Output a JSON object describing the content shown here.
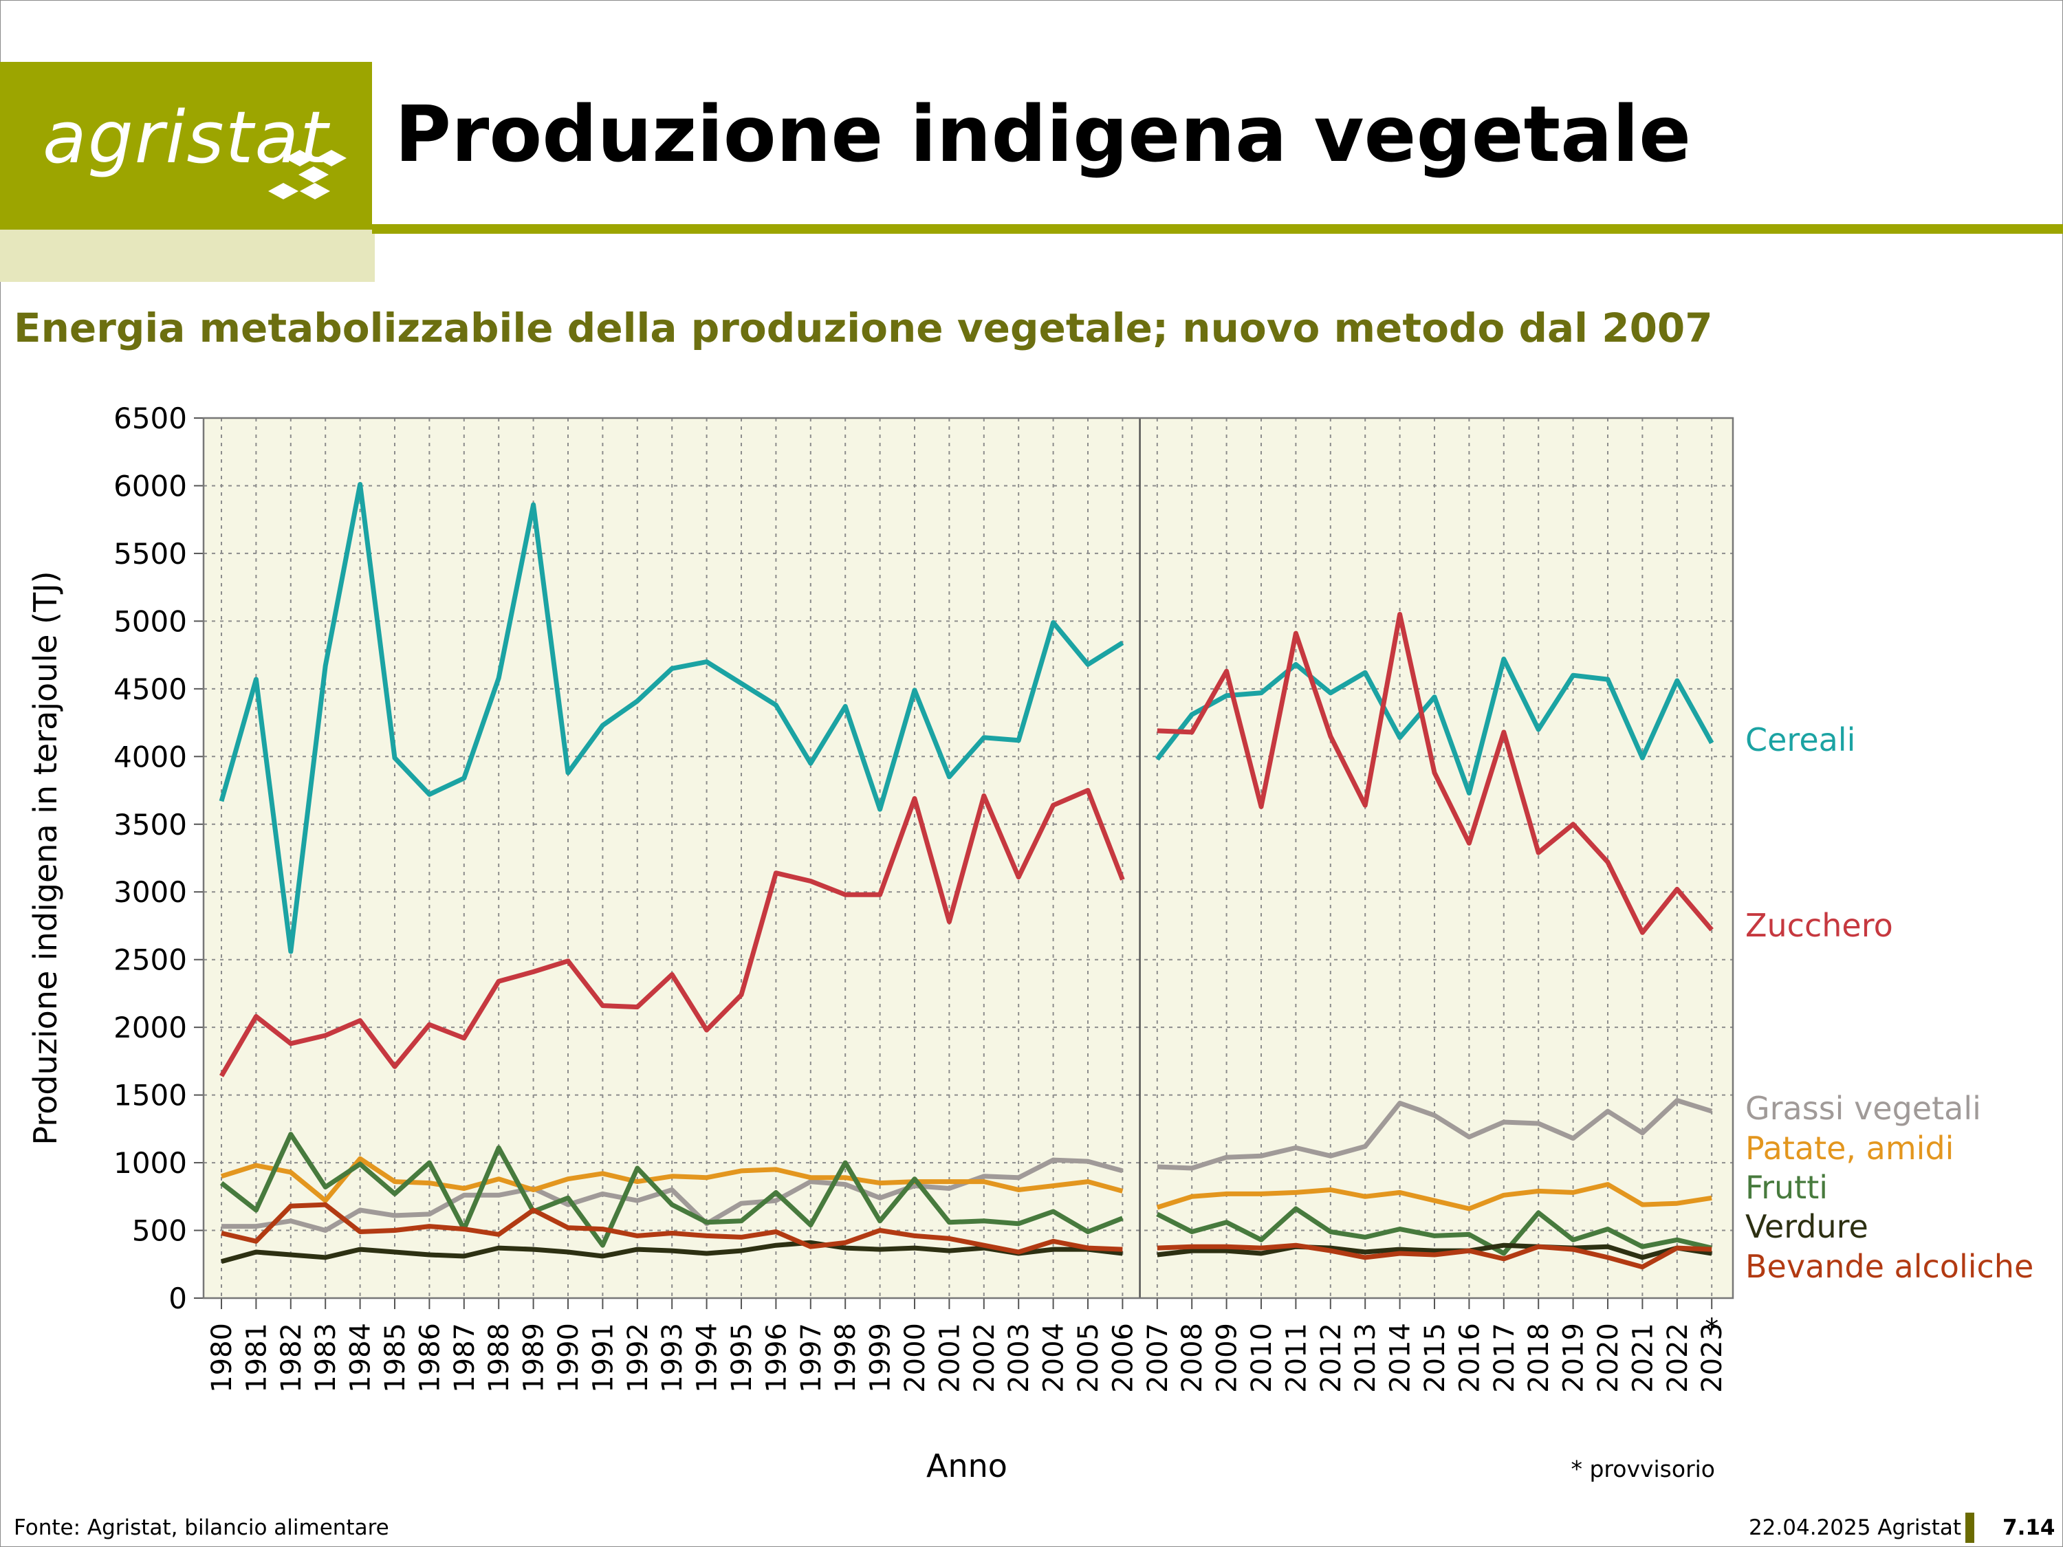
{
  "header": {
    "logo_text": "agristat",
    "title": "Produzione indigena vegetale"
  },
  "subtitle": "Energia metabolizzabile della produzione vegetale; nuovo metodo dal 2007",
  "colors": {
    "brand": "#9ca500",
    "brand_pale": "#e6e7bd",
    "subtitle": "#6c6f10",
    "plot_background": "#f6f6e4"
  },
  "chart_data": {
    "type": "line",
    "title": "",
    "xlabel": "Anno",
    "ylabel": "Produzione indigena in terajoule (TJ)",
    "ylim": [
      0,
      6500
    ],
    "yticks": [
      0,
      500,
      1000,
      1500,
      2000,
      2500,
      3000,
      3500,
      4000,
      4500,
      5000,
      5500,
      6000,
      6500
    ],
    "grid": true,
    "legend": "right",
    "method_break": "2006/2007",
    "footnote_marker": "*",
    "footnote": "* provvisorio",
    "categories": [
      "1980",
      "1981",
      "1982",
      "1983",
      "1984",
      "1985",
      "1986",
      "1987",
      "1988",
      "1989",
      "1990",
      "1991",
      "1992",
      "1993",
      "1994",
      "1995",
      "1996",
      "1997",
      "1998",
      "1999",
      "2000",
      "2001",
      "2002",
      "2003",
      "2004",
      "2005",
      "2006",
      "2007",
      "2008",
      "2009",
      "2010",
      "2011",
      "2012",
      "2013",
      "2014",
      "2015",
      "2016",
      "2017",
      "2018",
      "2019",
      "2020",
      "2021",
      "2022",
      "2023"
    ],
    "series": [
      {
        "name": "Cereali",
        "color": "#1ba3a3",
        "values": [
          3670,
          4570,
          2560,
          4670,
          6010,
          3990,
          3720,
          3840,
          4580,
          5860,
          3880,
          4230,
          4410,
          4650,
          4700,
          4540,
          4380,
          3950,
          4370,
          3610,
          4490,
          3850,
          4140,
          4120,
          4990,
          4680,
          4840,
          3980,
          4310,
          4450,
          4470,
          4680,
          4470,
          4620,
          4140,
          4440,
          3730,
          4720,
          4200,
          4600,
          4570,
          3990,
          4560,
          4100
        ]
      },
      {
        "name": "Zucchero",
        "color": "#c6383f",
        "values": [
          1640,
          2080,
          1880,
          1940,
          2050,
          1710,
          2020,
          1920,
          2340,
          2410,
          2490,
          2160,
          2150,
          2390,
          1980,
          2240,
          3140,
          3080,
          2980,
          2980,
          3690,
          2780,
          3710,
          3110,
          3640,
          3750,
          3090,
          4190,
          4180,
          4630,
          3630,
          4910,
          4150,
          3640,
          5050,
          3880,
          3360,
          4180,
          3290,
          3500,
          3220,
          2700,
          3020,
          2720
        ]
      },
      {
        "name": "Grassi vegetali",
        "color": "#a09a98",
        "values": [
          530,
          530,
          570,
          500,
          650,
          610,
          620,
          760,
          760,
          810,
          690,
          770,
          720,
          800,
          550,
          700,
          720,
          860,
          840,
          740,
          830,
          810,
          900,
          890,
          1020,
          1010,
          940,
          970,
          960,
          1040,
          1050,
          1110,
          1050,
          1120,
          1440,
          1350,
          1190,
          1300,
          1290,
          1180,
          1380,
          1220,
          1460,
          1380
        ]
      },
      {
        "name": "Patate, amidi",
        "color": "#e3961e",
        "values": [
          900,
          980,
          930,
          720,
          1030,
          860,
          850,
          810,
          880,
          800,
          880,
          920,
          860,
          900,
          890,
          940,
          950,
          890,
          890,
          850,
          860,
          860,
          860,
          800,
          830,
          860,
          790,
          670,
          750,
          770,
          770,
          780,
          800,
          750,
          780,
          720,
          660,
          760,
          790,
          780,
          840,
          690,
          700,
          740
        ]
      },
      {
        "name": "Frutti",
        "color": "#477a3d",
        "values": [
          850,
          650,
          1210,
          820,
          990,
          770,
          1000,
          510,
          1110,
          640,
          740,
          390,
          960,
          690,
          560,
          570,
          780,
          540,
          1000,
          570,
          880,
          560,
          570,
          550,
          640,
          490,
          590,
          620,
          490,
          560,
          430,
          660,
          490,
          450,
          510,
          460,
          470,
          330,
          630,
          430,
          510,
          380,
          430,
          370
        ]
      },
      {
        "name": "Verdure",
        "color": "#2d3012",
        "values": [
          270,
          340,
          320,
          300,
          360,
          340,
          320,
          310,
          370,
          360,
          340,
          310,
          360,
          350,
          330,
          350,
          390,
          410,
          370,
          360,
          370,
          350,
          370,
          330,
          360,
          360,
          330,
          320,
          350,
          350,
          330,
          380,
          370,
          340,
          360,
          350,
          350,
          390,
          380,
          370,
          380,
          300,
          370,
          330
        ]
      },
      {
        "name": "Bevande alcoliche",
        "color": "#b23a12",
        "values": [
          480,
          420,
          680,
          690,
          490,
          500,
          530,
          510,
          470,
          650,
          520,
          510,
          460,
          480,
          460,
          450,
          490,
          380,
          410,
          500,
          460,
          440,
          390,
          340,
          420,
          370,
          360,
          370,
          380,
          380,
          370,
          390,
          350,
          300,
          330,
          320,
          350,
          290,
          380,
          360,
          300,
          230,
          370,
          360
        ]
      }
    ]
  },
  "footer": {
    "source": "Fonte: Agristat, bilancio alimentare",
    "date": "22.04.2025 Agristat",
    "page": "7.14"
  }
}
